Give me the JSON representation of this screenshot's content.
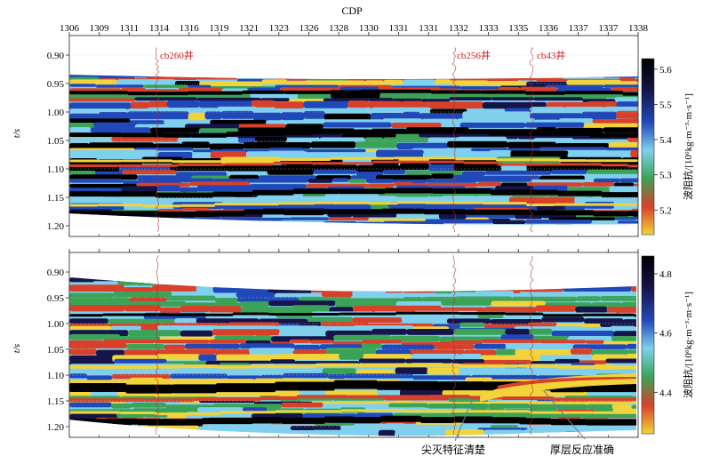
{
  "figure": {
    "x_axis_label": "CDP",
    "x_ticks": [
      "1306",
      "1309",
      "1311",
      "1314",
      "1316",
      "1319",
      "1321",
      "1323",
      "1326",
      "1328",
      "1330",
      "1331",
      "1331",
      "1332",
      "1333",
      "1335",
      "1336",
      "1337",
      "1337",
      "1338"
    ],
    "y_axis_label": "t/s",
    "y_ticks": [
      "0.90",
      "0.95",
      "1.00",
      "1.05",
      "1.10",
      "1.15",
      "1.20"
    ]
  },
  "wells": [
    "cb260井",
    "cb256井",
    "cb43井"
  ],
  "top_panel": {
    "colorbar_label": "波阻抗/[10⁶kg·m⁻³·m·s⁻¹]",
    "colorbar_ticks": [
      "5.6",
      "5.5",
      "5.4",
      "5.3",
      "5.2"
    ]
  },
  "bottom_panel": {
    "colorbar_label": "波阻抗/[10⁶kg·m⁻³·m·s⁻¹]",
    "colorbar_ticks": [
      "4.8",
      "4.6",
      "4.4"
    ]
  },
  "annotations": [
    "尖灭特征清楚",
    "厚层反应准确"
  ],
  "colors": {
    "well_label": "#cc2222",
    "colormap": [
      "#f2d43a",
      "#d8402a",
      "#3aa356",
      "#7fd0ee",
      "#2048b8",
      "#15154a",
      "#000000"
    ]
  }
}
